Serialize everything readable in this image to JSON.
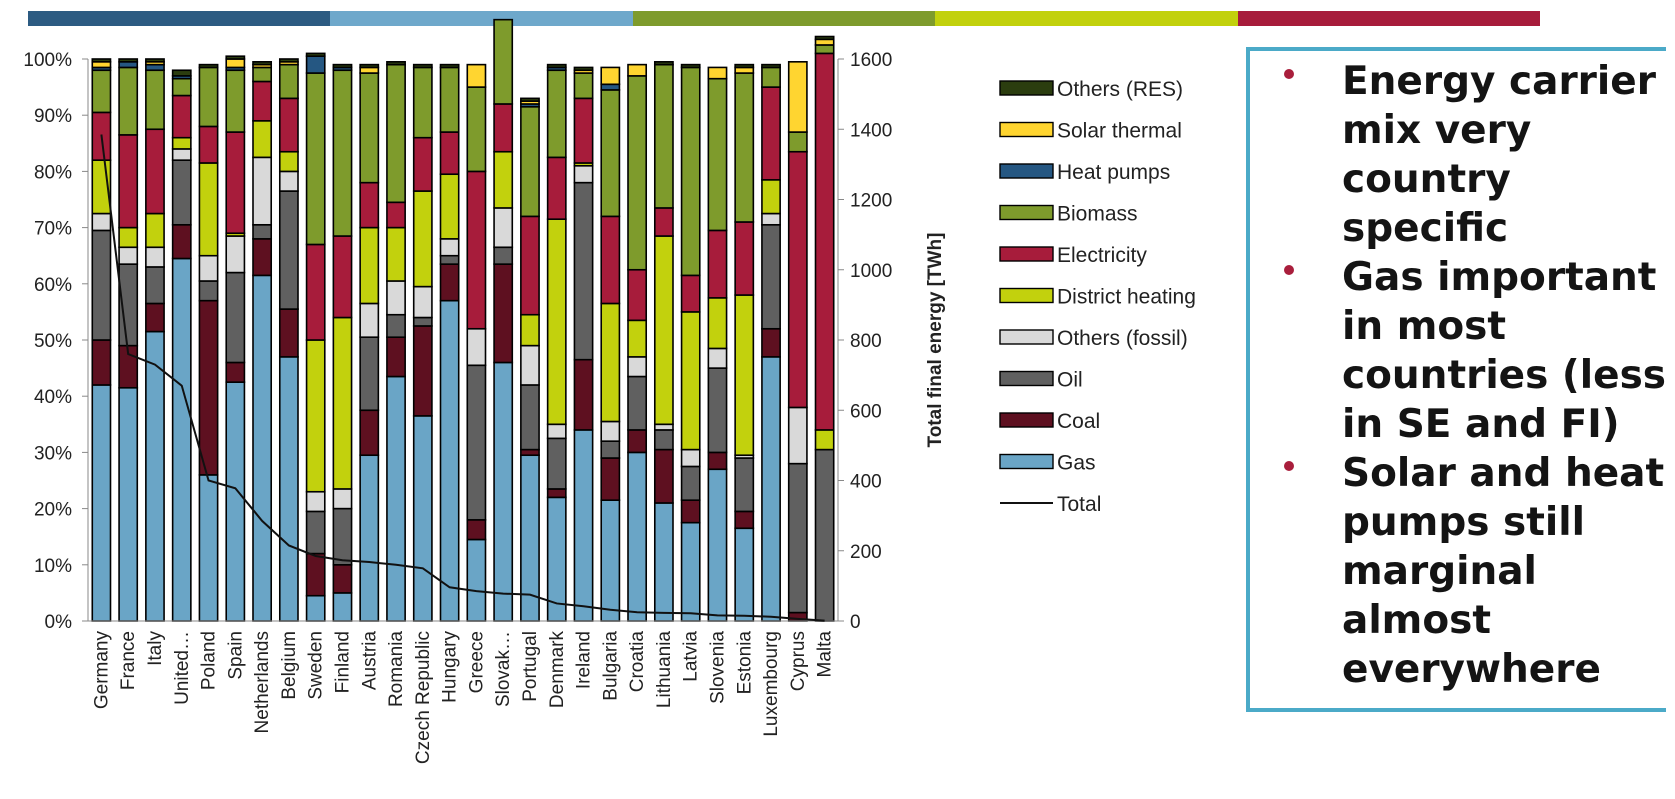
{
  "top_bar": {
    "colors": [
      "#2c5b82",
      "#6ea8cb",
      "#7e9b2c",
      "#c2d10d",
      "#a71c3b"
    ]
  },
  "notes": {
    "bullets": [
      "Energy carrier mix very country specific",
      "Gas important in most countries (less in SE and FI)",
      "Solar and heat pumps still marginal almost everywhere"
    ]
  },
  "chart_data": {
    "type": "bar",
    "stacked": true,
    "categories": [
      "Germany",
      "France",
      "Italy",
      "United…",
      "Poland",
      "Spain",
      "Netherlands",
      "Belgium",
      "Sweden",
      "Finland",
      "Austria",
      "Romania",
      "Czech Republic",
      "Hungary",
      "Greece",
      "Slovak…",
      "Portugal",
      "Denmark",
      "Ireland",
      "Bulgaria",
      "Croatia",
      "Lithuania",
      "Latvia",
      "Slovenia",
      "Estonia",
      "Luxembourg",
      "Cyprus",
      "Malta"
    ],
    "series": [
      {
        "name": "Gas",
        "color": "#6aa5c6",
        "values": [
          42,
          41.5,
          51.5,
          64.5,
          26,
          42.5,
          61.5,
          47,
          4.5,
          5,
          29.5,
          43.5,
          36.5,
          57,
          14.5,
          46,
          29.5,
          22,
          34,
          21.5,
          30,
          21,
          17.5,
          27,
          16.5,
          47,
          0,
          0
        ]
      },
      {
        "name": "Coal",
        "color": "#5e1020",
        "values": [
          8,
          7.5,
          5,
          6,
          31,
          3.5,
          6.5,
          8.5,
          7.5,
          5,
          8,
          7,
          16,
          6.5,
          3.5,
          17.5,
          1,
          1.5,
          12.5,
          7.5,
          4,
          9.5,
          4,
          3,
          3,
          5,
          1.5,
          0
        ]
      },
      {
        "name": "Oil",
        "color": "#606060",
        "values": [
          19.5,
          14.5,
          6.5,
          11.5,
          3.5,
          16,
          2.5,
          21,
          7.5,
          10,
          13,
          4,
          1.5,
          1.5,
          27.5,
          3,
          11.5,
          9,
          31.5,
          3,
          9.5,
          3.5,
          6,
          15,
          9.5,
          18.5,
          26.5,
          30.5
        ]
      },
      {
        "name": "Others (fossil)",
        "color": "#d9d9d9",
        "values": [
          3,
          3,
          3.5,
          2,
          4.5,
          6.5,
          12,
          3.5,
          3.5,
          3.5,
          6,
          6,
          5.5,
          3,
          6.5,
          7,
          7,
          2.5,
          3,
          3.5,
          3.5,
          1,
          3,
          3.5,
          0.5,
          2,
          10,
          0
        ]
      },
      {
        "name": "District heating",
        "color": "#c2d10d",
        "values": [
          9.5,
          3.5,
          6,
          2,
          16.5,
          0.5,
          6.5,
          3.5,
          27,
          30.5,
          13.5,
          9.5,
          17,
          11.5,
          0,
          10,
          5.5,
          36.5,
          0.5,
          21,
          6.5,
          33.5,
          24.5,
          9,
          28.5,
          6,
          0,
          3.5
        ]
      },
      {
        "name": "Electricity",
        "color": "#a71c3b",
        "values": [
          8.5,
          16.5,
          15,
          7.5,
          6.5,
          18,
          7,
          9.5,
          17,
          14.5,
          8,
          4.5,
          9.5,
          7.5,
          28,
          8.5,
          17.5,
          11,
          11.5,
          15.5,
          9,
          5,
          6.5,
          12,
          13,
          16.5,
          45.5,
          67
        ]
      },
      {
        "name": "Biomass",
        "color": "#7e9b2c",
        "values": [
          7.5,
          12,
          10.5,
          3,
          10.5,
          11,
          2.5,
          6,
          30.5,
          29.5,
          19.5,
          24.5,
          12.5,
          11.5,
          15,
          15,
          19.5,
          15.5,
          4.5,
          22.5,
          34.5,
          25.5,
          37,
          27,
          26.5,
          3.5,
          3.5,
          1.5
        ]
      },
      {
        "name": "Heat pumps",
        "color": "#255782",
        "values": [
          0.5,
          1,
          1,
          0.5,
          0,
          0.5,
          0,
          0,
          3,
          0.5,
          0,
          0,
          0,
          0,
          0,
          0,
          0.5,
          0.5,
          0,
          1,
          0,
          0,
          0,
          0,
          0,
          0,
          0,
          0
        ]
      },
      {
        "name": "Solar thermal",
        "color": "#ffd530",
        "values": [
          1,
          0,
          0.5,
          0,
          0,
          1.5,
          0.5,
          0.5,
          0,
          0,
          1,
          0,
          0,
          0,
          4,
          0,
          0.5,
          0,
          0.5,
          3,
          2,
          0,
          0,
          2,
          1,
          0,
          12.5,
          1
        ]
      },
      {
        "name": "Others (RES)",
        "color": "#2b3d0f",
        "values": [
          0.5,
          0.5,
          0.5,
          1,
          0.5,
          0.5,
          0.5,
          0.5,
          0.5,
          0.5,
          0.5,
          0.5,
          0.5,
          0.5,
          0,
          0,
          0.5,
          0.5,
          0.5,
          0,
          0,
          0.5,
          0.5,
          0,
          0.5,
          0.5,
          0,
          0.5
        ]
      }
    ],
    "total_line": {
      "name": "Total",
      "color": "#111111",
      "values": [
        1385,
        760,
        730,
        670,
        400,
        378,
        285,
        215,
        185,
        173,
        168,
        160,
        150,
        96,
        85,
        78,
        75,
        50,
        42,
        32,
        25,
        23,
        22,
        16,
        15,
        12,
        6,
        1
      ]
    },
    "y_left": {
      "ticks": [
        "0%",
        "10%",
        "20%",
        "30%",
        "40%",
        "50%",
        "60%",
        "70%",
        "80%",
        "90%",
        "100%"
      ],
      "ylim": [
        0,
        100
      ]
    },
    "y_right": {
      "label": "Total final energy [TWh]",
      "ticks": [
        "0",
        "200",
        "400",
        "600",
        "800",
        "1000",
        "1200",
        "1400",
        "1600"
      ],
      "ylim": [
        0,
        1600
      ]
    },
    "legend": {
      "position": "right",
      "items": [
        {
          "label": "Others (RES)",
          "kind": "box",
          "color": "#2b3d0f"
        },
        {
          "label": "Solar thermal",
          "kind": "box",
          "color": "#ffd530"
        },
        {
          "label": "Heat pumps",
          "kind": "box",
          "color": "#255782"
        },
        {
          "label": "Biomass",
          "kind": "box",
          "color": "#7e9b2c"
        },
        {
          "label": "Electricity",
          "kind": "box",
          "color": "#a71c3b"
        },
        {
          "label": "District heating",
          "kind": "box",
          "color": "#c2d10d"
        },
        {
          "label": "Others (fossil)",
          "kind": "box",
          "color": "#d9d9d9"
        },
        {
          "label": "Oil",
          "kind": "box",
          "color": "#606060"
        },
        {
          "label": "Coal",
          "kind": "box",
          "color": "#5e1020"
        },
        {
          "label": "Gas",
          "kind": "box",
          "color": "#6aa5c6"
        },
        {
          "label": "Total",
          "kind": "line",
          "color": "#111111"
        }
      ]
    }
  }
}
